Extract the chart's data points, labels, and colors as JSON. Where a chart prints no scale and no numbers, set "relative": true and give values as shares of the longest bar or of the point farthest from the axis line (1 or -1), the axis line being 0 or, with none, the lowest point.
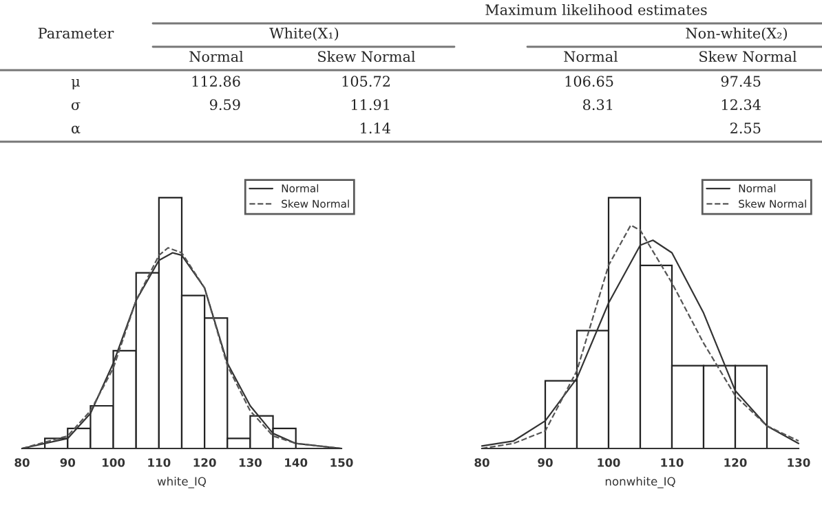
{
  "chart_data": [
    {
      "type": "other",
      "title": "Maximum likelihood estimates",
      "annotations": [
        "Parameter",
        "White(X₁)",
        "Non-white(X₂)",
        "Normal",
        "Skew Normal",
        "Normal",
        "Skew Normal",
        "μ",
        "112.86",
        "105.72",
        "106.65",
        "97.45",
        "σ",
        "9.59",
        "11.91",
        "8.31",
        "12.34",
        "α",
        "1.14",
        "2.55"
      ]
    },
    {
      "type": "histogram",
      "relative": true,
      "xlabel": "white_IQ",
      "xlim": [
        80,
        150
      ],
      "xticks": [
        80,
        90,
        100,
        110,
        120,
        130,
        140,
        150
      ],
      "legend": "top right",
      "marker": "none",
      "bins": [
        85,
        90,
        95,
        100,
        105,
        110,
        115,
        120,
        125,
        130,
        135,
        140
      ],
      "values": [
        0.04,
        0.08,
        0.17,
        0.39,
        0.7,
        1.0,
        0.61,
        0.52,
        0.04,
        0.13,
        0.08
      ],
      "series": [
        {
          "type": "line",
          "name": "Normal",
          "color": "#333333",
          "line_style": "solid",
          "x": [
            80,
            90,
            95,
            100,
            105,
            110,
            113,
            115,
            120,
            125,
            130,
            135,
            140,
            150
          ],
          "values": [
            0.0,
            0.04,
            0.14,
            0.34,
            0.59,
            0.75,
            0.78,
            0.77,
            0.64,
            0.34,
            0.17,
            0.06,
            0.02,
            0.0
          ]
        },
        {
          "type": "line",
          "name": "Skew Normal",
          "color": "#555555",
          "line_style": "dashed",
          "x": [
            80,
            90,
            95,
            100,
            105,
            110,
            112,
            115,
            120,
            125,
            130,
            135,
            140,
            150
          ],
          "values": [
            0.0,
            0.05,
            0.15,
            0.32,
            0.59,
            0.77,
            0.8,
            0.78,
            0.64,
            0.33,
            0.15,
            0.05,
            0.02,
            0.0
          ]
        }
      ]
    },
    {
      "type": "histogram",
      "relative": true,
      "xlabel": "nonwhite_IQ",
      "xlim": [
        80,
        130
      ],
      "xticks": [
        80,
        90,
        100,
        110,
        120,
        130
      ],
      "legend": "top right",
      "marker": "none",
      "bins": [
        90,
        95,
        100,
        105,
        110,
        115,
        120,
        125
      ],
      "values": [
        0.27,
        0.47,
        1.0,
        0.73,
        0.33,
        0.33,
        0.33
      ],
      "series": [
        {
          "type": "line",
          "name": "Normal",
          "color": "#333333",
          "line_style": "solid",
          "x": [
            80,
            85,
            90,
            95,
            100,
            105,
            107,
            110,
            115,
            120,
            125,
            130
          ],
          "values": [
            0.01,
            0.03,
            0.11,
            0.28,
            0.58,
            0.81,
            0.83,
            0.78,
            0.54,
            0.23,
            0.09,
            0.02
          ]
        },
        {
          "type": "line",
          "name": "Skew Normal",
          "color": "#555555",
          "line_style": "dashed",
          "x": [
            80,
            85,
            90,
            95,
            100,
            103.5,
            105,
            110,
            115,
            120,
            125,
            130
          ],
          "values": [
            0.0,
            0.02,
            0.07,
            0.31,
            0.73,
            0.89,
            0.87,
            0.66,
            0.42,
            0.21,
            0.09,
            0.03
          ]
        }
      ]
    }
  ]
}
